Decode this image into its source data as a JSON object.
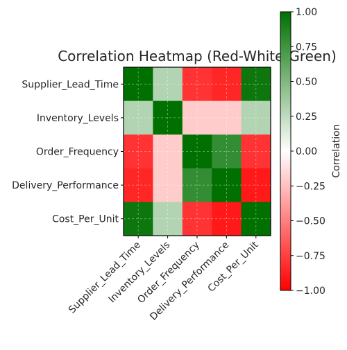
{
  "chart_data": {
    "type": "heatmap",
    "title": "Correlation Heatmap (Red-White-Green)",
    "rows": [
      "Supplier_Lead_Time",
      "Inventory_Levels",
      "Order_Frequency",
      "Delivery_Performance",
      "Cost_Per_Unit"
    ],
    "columns": [
      "Supplier_Lead_Time",
      "Inventory_Levels",
      "Order_Frequency",
      "Delivery_Performance",
      "Cost_Per_Unit"
    ],
    "values": [
      [
        1.0,
        0.3,
        -0.8,
        -0.85,
        0.95
      ],
      [
        0.3,
        1.0,
        -0.2,
        -0.2,
        0.3
      ],
      [
        -0.8,
        -0.2,
        1.0,
        0.8,
        -0.8
      ],
      [
        -0.85,
        -0.2,
        0.8,
        1.0,
        -0.9
      ],
      [
        0.95,
        0.3,
        -0.8,
        -0.9,
        1.0
      ]
    ],
    "colormap": {
      "name": "Red-White-Green",
      "low_color": "#ff0000",
      "mid_color": "#ffffff",
      "high_color": "#007000"
    },
    "vmin": -1.0,
    "vmax": 1.0,
    "colorbar": {
      "label": "Correlation",
      "ticks": [
        1.0,
        0.75,
        0.5,
        0.25,
        0.0,
        -0.25,
        -0.5,
        -0.75,
        -1.0
      ],
      "tick_labels": [
        "1.00",
        "0.75",
        "0.50",
        "0.25",
        "0.00",
        "−0.25",
        "−0.50",
        "−0.75",
        "−1.00"
      ]
    },
    "grid": true
  }
}
